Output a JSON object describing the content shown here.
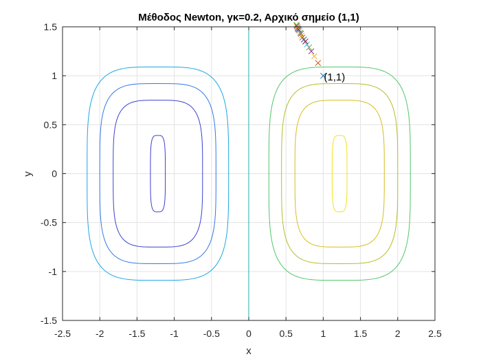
{
  "chart_data": {
    "type": "contour",
    "title": "Μέθοδος Newton, γκ=0.2, Αρχικό σημείο (1,1)",
    "xlabel": "x",
    "ylabel": "y",
    "xlim": [
      -2.5,
      2.5
    ],
    "ylim": [
      -1.5,
      1.5
    ],
    "xticks": [
      "-2.5",
      "-2",
      "-1.5",
      "-1",
      "-0.5",
      "0",
      "0.5",
      "1",
      "1.5",
      "2",
      "2.5"
    ],
    "yticks": [
      "-1.5",
      "-1",
      "-0.5",
      "0",
      "0.5",
      "1",
      "1.5"
    ],
    "grid": true,
    "contours": [
      {
        "center_x": -1.22,
        "half_width": 0.1,
        "half_height": 0.39,
        "color": "#3c3fcf"
      },
      {
        "center_x": -1.22,
        "half_width": 0.6,
        "half_height": 0.75,
        "color": "#3c3fcf"
      },
      {
        "center_x": -1.22,
        "half_width": 0.78,
        "half_height": 0.92,
        "color": "#2f78e6"
      },
      {
        "center_x": -1.22,
        "half_width": 0.95,
        "half_height": 1.09,
        "color": "#1aa6e2"
      },
      {
        "center_x": 1.22,
        "half_width": 0.1,
        "half_height": 0.39,
        "color": "#f2e21b"
      },
      {
        "center_x": 1.22,
        "half_width": 0.6,
        "half_height": 0.75,
        "color": "#d8bc1e"
      },
      {
        "center_x": 1.22,
        "half_width": 0.78,
        "half_height": 0.92,
        "color": "#b6bd24"
      },
      {
        "center_x": 1.22,
        "half_width": 0.95,
        "half_height": 1.09,
        "color": "#50c56a"
      }
    ],
    "zero_level_line": {
      "x": 0,
      "color": "#18b0b0"
    },
    "iterates": {
      "x": [
        1.0,
        0.93,
        0.88,
        0.84,
        0.81,
        0.78,
        0.76,
        0.74,
        0.72,
        0.71,
        0.7,
        0.69,
        0.68,
        0.67,
        0.66,
        0.655,
        0.65,
        0.645,
        0.64
      ],
      "y": [
        1.0,
        1.13,
        1.2,
        1.25,
        1.29,
        1.32,
        1.35,
        1.37,
        1.39,
        1.41,
        1.43,
        1.44,
        1.46,
        1.47,
        1.48,
        1.49,
        1.5,
        1.51,
        1.52
      ],
      "colors": [
        "#0072bd",
        "#d95319",
        "#edb120",
        "#7e2f8e",
        "#77ac30",
        "#4dbeee",
        "#a2142f"
      ]
    },
    "annotation": {
      "text": "(1,1)",
      "x": 1.0,
      "y": 1.0
    }
  }
}
